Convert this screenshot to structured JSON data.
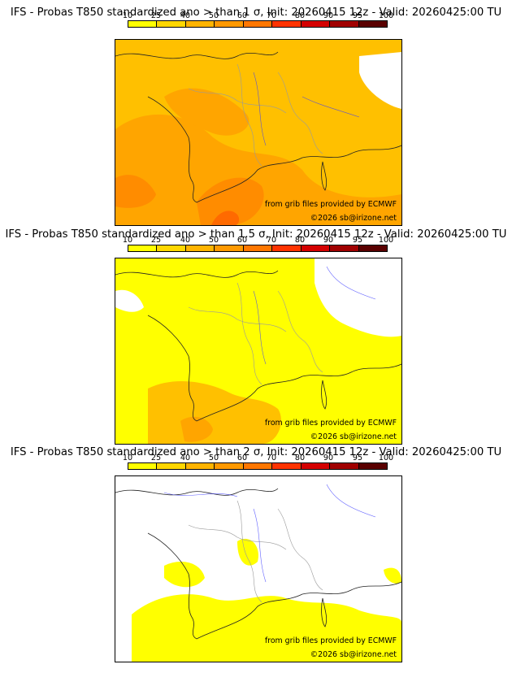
{
  "scale_ticks": [
    "10",
    "25",
    "40",
    "50",
    "60",
    "70",
    "80",
    "90",
    "95",
    "100"
  ],
  "scale_colors": [
    "#ffff00",
    "#ffd700",
    "#ffb400",
    "#ff9900",
    "#ff7700",
    "#ff3300",
    "#d40000",
    "#a00000",
    "#5a0000"
  ],
  "map_colors": {
    "low": "#ffff00",
    "mid": "#ffc000",
    "midhigh": "#ffa500",
    "high": "#ff8c00",
    "veryhigh": "#ff6a00",
    "empty": "#ffffff"
  },
  "credits": {
    "source": "from grib files provided by ECMWF",
    "copyright": "©2026 sb@irizone.net"
  },
  "panels": [
    {
      "title": "IFS - Probas T850  standardized ano > than 1 σ, Init: 20260415 12z - Valid: 20260425:00 TU",
      "threshold": "1 σ"
    },
    {
      "title": "IFS - Probas T850  standardized ano > than 1.5 σ, Init: 20260415 12z - Valid: 20260425:00 TU",
      "threshold": "1.5 σ"
    },
    {
      "title": "IFS - Probas T850  standardized ano > than 2 σ, Init: 20260415 12z - Valid: 20260425:00 TU",
      "threshold": "2 σ"
    }
  ]
}
